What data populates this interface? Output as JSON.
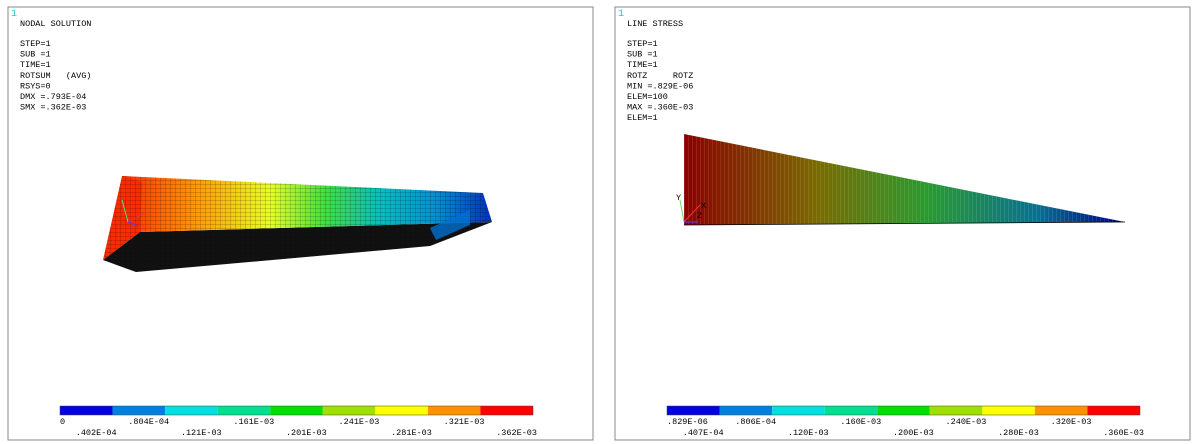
{
  "panels": [
    {
      "number": "1",
      "title": "NODAL SOLUTION",
      "info": [
        "STEP=1",
        "SUB =1",
        "TIME=1",
        "ROTSUM   (AVG)",
        "RSYS=0",
        "DMX =.793E-04",
        "SMX =.362E-03"
      ],
      "legend": [
        "0",
        ".402E-04",
        ".804E-04",
        ".121E-03",
        ".161E-03",
        ".201E-03",
        ".241E-03",
        ".281E-03",
        ".321E-03",
        ".362E-03"
      ]
    },
    {
      "number": "1",
      "title": "LINE STRESS",
      "info": [
        "STEP=1",
        "SUB =1",
        "TIME=1",
        "ROTZ     ROTZ",
        "MIN =.829E-06",
        "ELEM=100",
        "MAX =.360E-03",
        "ELEM=1"
      ],
      "legend": [
        ".829E-06",
        ".407E-04",
        ".806E-04",
        ".120E-03",
        ".160E-03",
        ".200E-03",
        ".240E-03",
        ".280E-03",
        ".320E-03",
        ".360E-03"
      ],
      "axes": [
        "Y",
        "X",
        "Z"
      ]
    }
  ]
}
